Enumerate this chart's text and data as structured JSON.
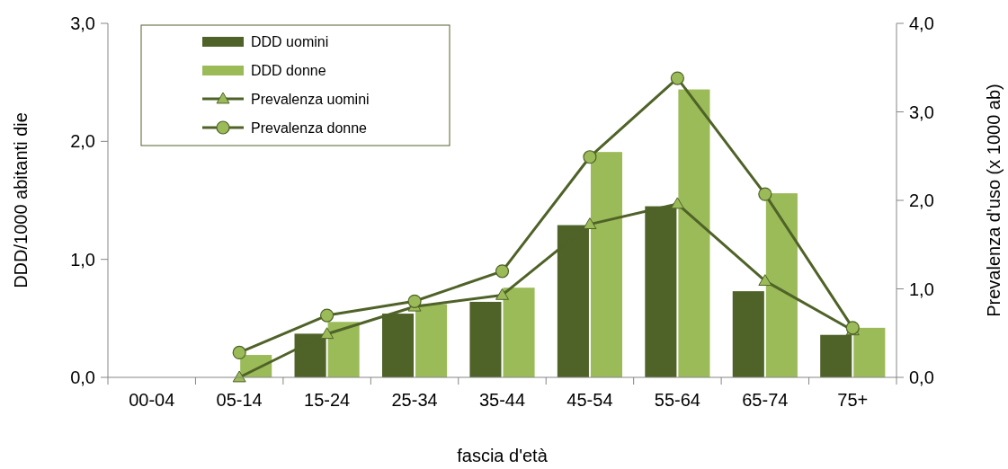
{
  "chart_data": {
    "type": "bar",
    "xlabel": "fascia d'età",
    "ylabel": "DDD/1000 abitanti die",
    "y2label": "Prevalenza d'uso (x 1000 ab)",
    "categories": [
      "00-04",
      "05-14",
      "15-24",
      "25-34",
      "35-44",
      "45-54",
      "55-64",
      "65-74",
      "75+"
    ],
    "series": [
      {
        "name": "DDD uomini",
        "color": "#4f6228",
        "values": [
          0,
          0,
          0.37,
          0.54,
          0.64,
          1.29,
          1.45,
          0.73,
          0.36
        ]
      },
      {
        "name": "DDD donne",
        "color": "#9bbb59",
        "values": [
          0,
          0.19,
          0.47,
          0.62,
          0.76,
          1.91,
          2.44,
          1.56,
          0.42
        ]
      },
      {
        "name": "Prevalenza uomini",
        "type": "line",
        "axis": "y2",
        "color": "#4f6228",
        "marker": "triangle",
        "values": [
          null,
          0,
          0.49,
          0.8,
          0.93,
          1.73,
          1.96,
          1.09,
          0.53
        ]
      },
      {
        "name": "Prevalenza donne",
        "type": "line",
        "axis": "y2",
        "color": "#4f6228",
        "marker": "circle",
        "values": [
          null,
          0.28,
          0.7,
          0.86,
          1.2,
          2.49,
          3.38,
          2.07,
          0.56
        ]
      }
    ],
    "ylim": [
      0,
      3
    ],
    "yticks": [
      {
        "value": 0,
        "label": "0,0"
      },
      {
        "value": 1,
        "label": "1,0"
      },
      {
        "value": 2,
        "label": "2,0"
      },
      {
        "value": 3,
        "label": "3,0"
      }
    ],
    "y2lim": [
      0,
      4
    ],
    "y2ticks": [
      {
        "value": 0,
        "label": "0,0"
      },
      {
        "value": 1,
        "label": "1,0"
      },
      {
        "value": 2,
        "label": "2,0"
      },
      {
        "value": 3,
        "label": "3,0"
      },
      {
        "value": 4,
        "label": "4,0"
      }
    ],
    "legend": "top left",
    "grid": false
  }
}
